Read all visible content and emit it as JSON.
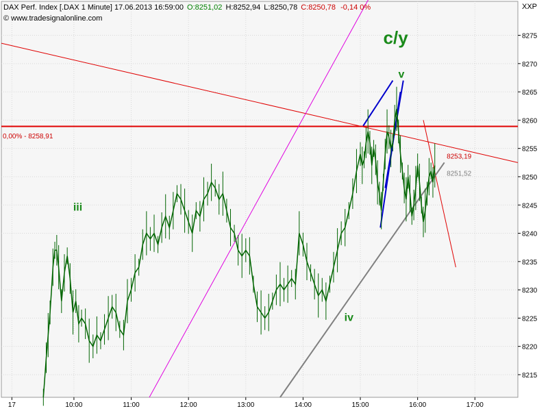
{
  "header": {
    "instrument": "DAX Perf. Index [.DAX  1 Minute] 17.06.2013 16:59:00",
    "open": "O:8251,02",
    "high": "H:8252,94",
    "low": "L:8250,78",
    "close": "C:8250,78",
    "change": "-0,14 0%",
    "watermark": "© www.tradesignalonline.com",
    "corner_label": "XXP",
    "colors": {
      "open": "#008000",
      "close": "#cc0000",
      "text": "#000000"
    }
  },
  "chart_data": {
    "type": "line",
    "title": "DAX Perf. Index [.DAX  1 Minute] 17.06.2013 16:59:00",
    "ylim": [
      8211,
      8281
    ],
    "xlim_minutes_from_0900": [
      -16,
      525
    ],
    "y_ticks": [
      8215,
      8220,
      8225,
      8230,
      8235,
      8240,
      8245,
      8250,
      8255,
      8260,
      8265,
      8270,
      8275
    ],
    "y_tick_labels": [
      "8215",
      "8220",
      "8225",
      "8230",
      "8235",
      "8240",
      "8245",
      "8250",
      "8255",
      "8260",
      "8265",
      "8270",
      "8275"
    ],
    "x_ticks": [
      {
        "label": "17",
        "t": -5
      },
      {
        "label": "10:00",
        "t": 60
      },
      {
        "label": "11:00",
        "t": 120
      },
      {
        "label": "12:00",
        "t": 180
      },
      {
        "label": "13:00",
        "t": 240
      },
      {
        "label": "14:00",
        "t": 300
      },
      {
        "label": "15:00",
        "t": 360
      },
      {
        "label": "16:00",
        "t": 420
      },
      {
        "label": "17:00",
        "t": 480
      }
    ],
    "price_series": {
      "name": "",
      "color": "#006400",
      "points": [
        [
          28,
          8211
        ],
        [
          31,
          8218
        ],
        [
          33,
          8222
        ],
        [
          35,
          8226
        ],
        [
          38,
          8234
        ],
        [
          40,
          8237
        ],
        [
          42,
          8237
        ],
        [
          44,
          8234
        ],
        [
          47,
          8228
        ],
        [
          50,
          8233
        ],
        [
          53,
          8236
        ],
        [
          56,
          8232
        ],
        [
          59,
          8226
        ],
        [
          62,
          8228
        ],
        [
          65,
          8224
        ],
        [
          68,
          8225
        ],
        [
          72,
          8224
        ],
        [
          76,
          8221
        ],
        [
          80,
          8220
        ],
        [
          84,
          8222
        ],
        [
          88,
          8221
        ],
        [
          92,
          8223
        ],
        [
          96,
          8225
        ],
        [
          100,
          8227
        ],
        [
          104,
          8226
        ],
        [
          108,
          8223
        ],
        [
          112,
          8222
        ],
        [
          116,
          8228
        ],
        [
          120,
          8230
        ],
        [
          124,
          8233
        ],
        [
          128,
          8234
        ],
        [
          132,
          8238
        ],
        [
          136,
          8240
        ],
        [
          140,
          8239
        ],
        [
          144,
          8240
        ],
        [
          148,
          8238
        ],
        [
          152,
          8241
        ],
        [
          156,
          8243
        ],
        [
          160,
          8241
        ],
        [
          164,
          8244
        ],
        [
          168,
          8247
        ],
        [
          172,
          8246
        ],
        [
          176,
          8244
        ],
        [
          180,
          8242
        ],
        [
          184,
          8240
        ],
        [
          188,
          8244
        ],
        [
          192,
          8243
        ],
        [
          196,
          8246
        ],
        [
          200,
          8247
        ],
        [
          204,
          8249
        ],
        [
          208,
          8248
        ],
        [
          212,
          8246
        ],
        [
          216,
          8247
        ],
        [
          220,
          8244
        ],
        [
          224,
          8241
        ],
        [
          228,
          8240
        ],
        [
          232,
          8237
        ],
        [
          236,
          8236
        ],
        [
          240,
          8237
        ],
        [
          244,
          8236
        ],
        [
          248,
          8231
        ],
        [
          252,
          8227
        ],
        [
          256,
          8226
        ],
        [
          260,
          8225
        ],
        [
          264,
          8226
        ],
        [
          268,
          8228
        ],
        [
          272,
          8230
        ],
        [
          276,
          8231
        ],
        [
          280,
          8230
        ],
        [
          284,
          8231
        ],
        [
          288,
          8232
        ],
        [
          292,
          8231
        ],
        [
          296,
          8240
        ],
        [
          300,
          8238
        ],
        [
          304,
          8235
        ],
        [
          308,
          8233
        ],
        [
          312,
          8231
        ],
        [
          316,
          8229
        ],
        [
          320,
          8230
        ],
        [
          324,
          8228
        ],
        [
          328,
          8231
        ],
        [
          332,
          8234
        ],
        [
          336,
          8237
        ],
        [
          340,
          8240
        ],
        [
          344,
          8241
        ],
        [
          348,
          8244
        ],
        [
          352,
          8247
        ],
        [
          356,
          8251
        ],
        [
          360,
          8254
        ],
        [
          362,
          8252
        ],
        [
          364,
          8253
        ],
        [
          366,
          8256
        ],
        [
          368,
          8258
        ],
        [
          370,
          8256
        ],
        [
          372,
          8252
        ],
        [
          374,
          8255
        ],
        [
          376,
          8253
        ],
        [
          378,
          8249
        ],
        [
          380,
          8247
        ],
        [
          382,
          8244
        ],
        [
          384,
          8249
        ],
        [
          386,
          8254
        ],
        [
          388,
          8258
        ],
        [
          390,
          8257
        ],
        [
          392,
          8255
        ],
        [
          394,
          8256
        ],
        [
          396,
          8260
        ],
        [
          398,
          8262
        ],
        [
          400,
          8258
        ],
        [
          402,
          8254
        ],
        [
          404,
          8251
        ],
        [
          406,
          8248
        ],
        [
          408,
          8246
        ],
        [
          410,
          8250
        ],
        [
          412,
          8247
        ],
        [
          414,
          8243
        ],
        [
          416,
          8245
        ],
        [
          418,
          8248
        ],
        [
          420,
          8252
        ],
        [
          422,
          8249
        ],
        [
          424,
          8245
        ],
        [
          426,
          8242
        ],
        [
          428,
          8244
        ],
        [
          430,
          8247
        ],
        [
          432,
          8250
        ],
        [
          434,
          8251
        ],
        [
          436,
          8249
        ],
        [
          438,
          8252
        ]
      ]
    },
    "lines": [
      {
        "name": "horizontal-level",
        "color": "#e00000",
        "width": 2,
        "from": [
          -16,
          8258.9
        ],
        "to": [
          525,
          8258.9
        ]
      },
      {
        "name": "falling-trendline",
        "color": "#e00000",
        "width": 1,
        "from": [
          -16,
          8273.6
        ],
        "to": [
          525,
          8252.5
        ]
      },
      {
        "name": "drop-line",
        "color": "#e00000",
        "width": 1,
        "from": [
          426,
          8260
        ],
        "to": [
          460,
          8234
        ]
      },
      {
        "name": "magenta-line",
        "color": "#e000e0",
        "width": 1,
        "from": [
          139,
          8211
        ],
        "to": [
          400,
          8291
        ]
      },
      {
        "name": "gray-trendline",
        "color": "#808080",
        "width": 2,
        "from": [
          276,
          8211
        ],
        "to": [
          448,
          8252.5
        ]
      },
      {
        "name": "blue-wedge-1",
        "color": "#0000cc",
        "width": 2,
        "from": [
          363,
          8259
        ],
        "to": [
          394,
          8267
        ]
      },
      {
        "name": "blue-wedge-2",
        "color": "#0000cc",
        "width": 2,
        "from": [
          381,
          8241
        ],
        "to": [
          402,
          8265
        ]
      },
      {
        "name": "blue-wedge-3",
        "color": "#0000cc",
        "width": 2,
        "from": [
          386,
          8248
        ],
        "to": [
          405,
          8267
        ]
      }
    ],
    "annotations": [
      {
        "text": "c/y",
        "x": 397,
        "y": 8273.5,
        "color": "#1a8a1a",
        "size": 26
      },
      {
        "text": "v",
        "x": 403,
        "y": 8267.5,
        "color": "#1a8a1a",
        "size": 16
      },
      {
        "text": "iii",
        "x": 64,
        "y": 8244,
        "color": "#1a8a1a",
        "size": 16
      },
      {
        "text": "iv",
        "x": 348,
        "y": 8224.5,
        "color": "#1a8a1a",
        "size": 16
      }
    ],
    "price_labels": [
      {
        "text": "0,00% - 8258,91",
        "x": -16,
        "y": 8256.8,
        "color": "#cc0000"
      },
      {
        "text": "8253,19",
        "x": 449,
        "y": 8253.2,
        "color": "#cc0000"
      },
      {
        "text": "8251,52",
        "x": 449,
        "y": 8250.2,
        "color": "#808080"
      }
    ]
  }
}
